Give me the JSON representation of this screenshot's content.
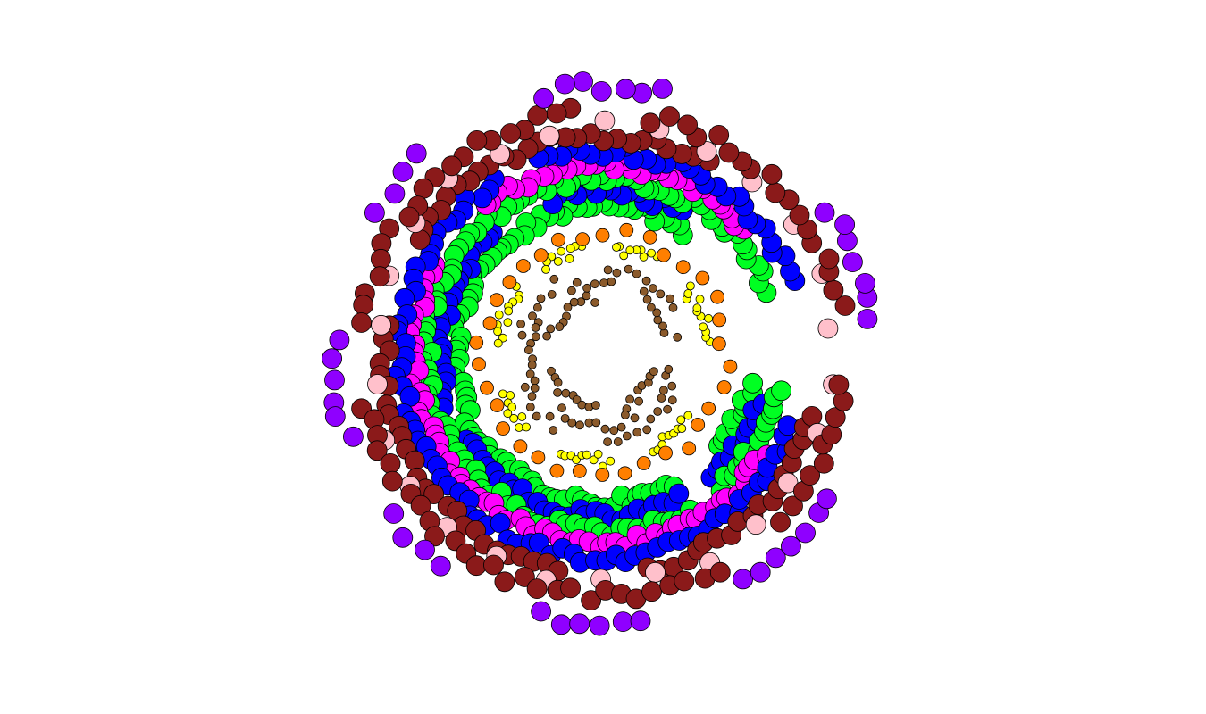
{
  "chart_data": {
    "type": "scatter",
    "coordinate_system": "polar",
    "title": "",
    "xlabel": "",
    "ylabel": "",
    "axes_visible": false,
    "grid": false,
    "legend": "none",
    "r_range": [
      0,
      10
    ],
    "series": [
      {
        "color": "#8B5A2B",
        "r": 1.55,
        "marker_size": "small",
        "arcs": [
          [
            95,
            165
          ],
          [
            195,
            265
          ],
          [
            290,
            345
          ]
        ],
        "points": 28
      },
      {
        "color": "#8B5A2B",
        "r": 2.0,
        "marker_size": "small",
        "arcs": [
          [
            10,
            60
          ],
          [
            80,
            120
          ],
          [
            150,
            210
          ],
          [
            230,
            300
          ],
          [
            320,
            350
          ]
        ],
        "points": 40
      },
      {
        "color": "#8B5A2B",
        "r": 2.4,
        "marker_size": "small",
        "arcs": [
          [
            30,
            90
          ],
          [
            120,
            170
          ],
          [
            200,
            240
          ],
          [
            270,
            330
          ]
        ],
        "points": 30
      },
      {
        "color": "#FFFF00",
        "r": 3.0,
        "marker_size": "small",
        "arcs": [
          [
            5,
            40
          ],
          [
            60,
            85
          ],
          [
            100,
            125
          ],
          [
            140,
            175
          ],
          [
            200,
            225
          ],
          [
            245,
            275
          ],
          [
            295,
            325
          ]
        ],
        "points": 70
      },
      {
        "color": "#FF7F00",
        "r": 3.45,
        "marker_size": "medium",
        "arcs": [
          [
            0,
            360
          ]
        ],
        "points": 34
      },
      {
        "color": "#00FF22",
        "r": 4.2,
        "marker_size": "large",
        "arcs": [
          [
            55,
            300
          ],
          [
            320,
            350
          ]
        ],
        "points": 90
      },
      {
        "color": "#0000FF",
        "r": 4.6,
        "marker_size": "large",
        "arcs": [
          [
            60,
            110
          ],
          [
            130,
            200
          ],
          [
            210,
            300
          ],
          [
            310,
            345
          ]
        ],
        "points": 80
      },
      {
        "color": "#00FF22",
        "r": 5.0,
        "marker_size": "large",
        "arcs": [
          [
            20,
            300
          ],
          [
            310,
            350
          ]
        ],
        "points": 110
      },
      {
        "color": "#FF00FF",
        "r": 5.35,
        "marker_size": "large",
        "arcs": [
          [
            40,
            130
          ],
          [
            150,
            330
          ]
        ],
        "points": 95
      },
      {
        "color": "#0000FF",
        "r": 5.75,
        "marker_size": "large",
        "arcs": [
          [
            20,
            110
          ],
          [
            120,
            340
          ]
        ],
        "points": 100
      },
      {
        "color": "#8B1A1A",
        "r": 6.2,
        "marker_size": "large",
        "arcs": [
          [
            60,
            150
          ],
          [
            170,
            260
          ],
          [
            280,
            345
          ]
        ],
        "points": 70
      },
      {
        "color": "#FFC0CB",
        "r": 6.5,
        "marker_size": "large",
        "arcs": [
          [
            0,
            360
          ]
        ],
        "points": 26
      },
      {
        "color": "#8B1A1A",
        "r": 6.85,
        "marker_size": "large",
        "arcs": [
          [
            10,
            80
          ],
          [
            95,
            175
          ],
          [
            190,
            300
          ],
          [
            315,
            355
          ]
        ],
        "points": 75
      },
      {
        "color": "#8F00FF",
        "r": 7.6,
        "marker_size": "large",
        "arcs": [
          [
            5,
            35
          ],
          [
            75,
            105
          ],
          [
            130,
            150
          ],
          [
            175,
            200
          ],
          [
            215,
            235
          ],
          [
            255,
            280
          ],
          [
            300,
            330
          ]
        ],
        "points": 40
      }
    ]
  }
}
